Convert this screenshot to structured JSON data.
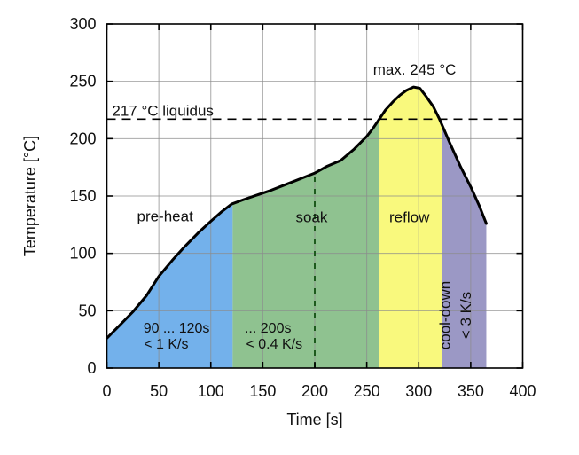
{
  "chart_data": {
    "type": "area",
    "title": "",
    "xlabel": "Time [s]",
    "ylabel": "Temperature [°C]",
    "xlim": [
      0,
      400
    ],
    "ylim": [
      0,
      300
    ],
    "xticks": [
      0,
      50,
      100,
      150,
      200,
      250,
      300,
      350,
      400
    ],
    "yticks": [
      0,
      50,
      100,
      150,
      200,
      250,
      300
    ],
    "grid": true,
    "grid_color": "#8c8c8c",
    "curve": {
      "name": "temperature-profile",
      "color": "#000000",
      "points": [
        [
          0,
          26
        ],
        [
          12,
          37
        ],
        [
          25,
          49
        ],
        [
          38,
          63
        ],
        [
          50,
          80
        ],
        [
          63,
          94
        ],
        [
          75,
          106
        ],
        [
          88,
          118
        ],
        [
          100,
          128
        ],
        [
          110,
          136
        ],
        [
          120,
          143
        ],
        [
          132,
          147
        ],
        [
          145,
          151
        ],
        [
          158,
          155
        ],
        [
          172,
          160
        ],
        [
          186,
          165
        ],
        [
          200,
          170
        ],
        [
          212,
          176
        ],
        [
          225,
          181
        ],
        [
          238,
          191
        ],
        [
          250,
          202
        ],
        [
          256,
          209
        ],
        [
          262,
          217
        ],
        [
          268,
          225
        ],
        [
          275,
          232
        ],
        [
          282,
          238
        ],
        [
          288,
          242
        ],
        [
          295,
          245
        ],
        [
          301,
          244
        ],
        [
          307,
          237
        ],
        [
          314,
          228
        ],
        [
          320,
          217
        ],
        [
          330,
          196
        ],
        [
          340,
          176
        ],
        [
          350,
          158
        ],
        [
          358,
          142
        ],
        [
          365,
          126
        ]
      ]
    },
    "zones": [
      {
        "name": "pre-heat",
        "from": 0,
        "to": 121,
        "color": "#73b1eb"
      },
      {
        "name": "soak",
        "from": 121,
        "to": 262,
        "color": "#8fc290"
      },
      {
        "name": "reflow",
        "from": 262,
        "to": 322,
        "color": "#f9f97d"
      },
      {
        "name": "cool-down",
        "from": 322,
        "to": 365,
        "color": "#9b98c5"
      }
    ],
    "liquidus_line": {
      "value": 217,
      "label": "217 °C liquidus",
      "dash": "10 7",
      "color": "#000000"
    },
    "soak_guide_line": {
      "x": 200,
      "to_temp": 170,
      "dash": "6 8",
      "color": "#1d5a1d"
    },
    "annotations": [
      {
        "name": "liquidus-label",
        "text": "217 °C liquidus",
        "t": 5,
        "T": 220,
        "anchor": "start",
        "size": 17,
        "rotate": 0
      },
      {
        "name": "max-temp-label",
        "text": "max. 245 °C",
        "t": 296,
        "T": 256,
        "anchor": "middle",
        "size": 17,
        "rotate": 0
      },
      {
        "name": "zone-label-pre-heat",
        "text": "pre-heat",
        "t": 56,
        "T": 128,
        "anchor": "middle",
        "size": 17,
        "rotate": 0
      },
      {
        "name": "zone-label-soak",
        "text": "soak",
        "t": 197,
        "T": 127,
        "anchor": "middle",
        "size": 17,
        "rotate": 0
      },
      {
        "name": "zone-label-reflow",
        "text": "reflow",
        "t": 291,
        "T": 127,
        "anchor": "middle",
        "size": 17,
        "rotate": 0
      },
      {
        "name": "preheat-duration",
        "text": "90 ... 120s",
        "t": 67,
        "T": 31,
        "anchor": "middle",
        "size": 16,
        "rotate": 0
      },
      {
        "name": "preheat-rate",
        "text": "< 1 K/s",
        "t": 57,
        "T": 17,
        "anchor": "middle",
        "size": 16,
        "rotate": 0
      },
      {
        "name": "soak-duration",
        "text": "... 200s",
        "t": 155,
        "T": 31,
        "anchor": "middle",
        "size": 16,
        "rotate": 0
      },
      {
        "name": "soak-rate",
        "text": "< 0.4 K/s",
        "t": 161,
        "T": 17,
        "anchor": "middle",
        "size": 16,
        "rotate": 0
      },
      {
        "name": "zone-label-cool-down",
        "text": "cool-down",
        "t": 330,
        "T": 46,
        "anchor": "middle",
        "size": 17,
        "rotate": -90
      },
      {
        "name": "cool-down-rate",
        "text": "< 3 K/s",
        "t": 350,
        "T": 46,
        "anchor": "middle",
        "size": 17,
        "rotate": -90
      }
    ],
    "axis": {
      "tick_font_size": 18,
      "label_font_size": 18,
      "border_color": "#000000"
    }
  }
}
